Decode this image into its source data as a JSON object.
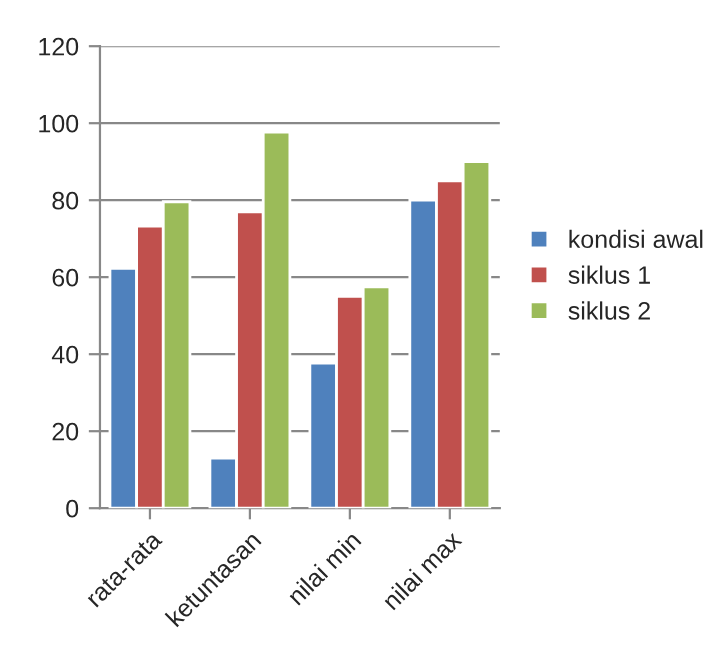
{
  "chart_data": {
    "type": "bar",
    "categories": [
      "rata-rata",
      "ketuntasan",
      "nilai min",
      "nilai max"
    ],
    "series": [
      {
        "name": "kondisi awal",
        "color": "#4f81bd",
        "values": [
          62.3,
          13,
          37.7,
          80
        ]
      },
      {
        "name": "siklus 1",
        "color": "#c0504d",
        "values": [
          73.3,
          77,
          55,
          85
        ]
      },
      {
        "name": "siklus 2",
        "color": "#9bbb59",
        "values": [
          79.6,
          97.7,
          57.5,
          90
        ]
      }
    ],
    "ylim": [
      0,
      120
    ],
    "yticks": [
      0,
      20,
      40,
      60,
      80,
      100,
      120
    ],
    "grid": "y",
    "legend": "right"
  }
}
